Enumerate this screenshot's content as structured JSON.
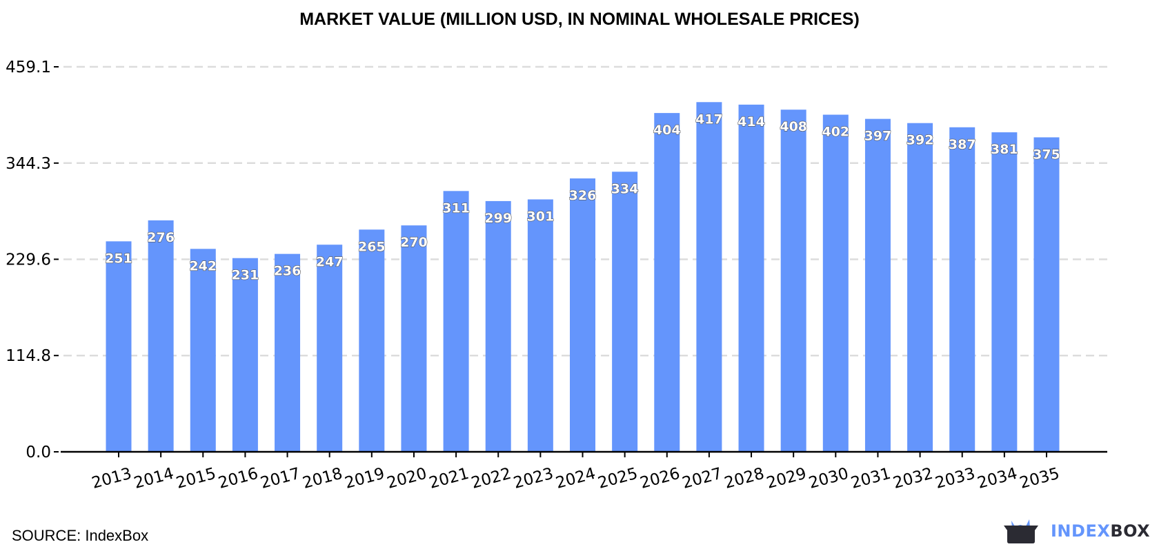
{
  "chart_data": {
    "type": "bar",
    "title": "MARKET VALUE (MILLION USD, IN NOMINAL WHOLESALE PRICES)",
    "categories": [
      "2013",
      "2014",
      "2015",
      "2016",
      "2017",
      "2018",
      "2019",
      "2020",
      "2021",
      "2022",
      "2023",
      "2024",
      "2025",
      "2026",
      "2027",
      "2028",
      "2029",
      "2030",
      "2031",
      "2032",
      "2033",
      "2034",
      "2035"
    ],
    "values": [
      251,
      276,
      242,
      231,
      236,
      247,
      265,
      270,
      311,
      299,
      301,
      326,
      334,
      404,
      417,
      414,
      408,
      402,
      397,
      392,
      387,
      381,
      375
    ],
    "yticks": [
      "0.0",
      "114.8",
      "229.6",
      "344.3",
      "459.1"
    ],
    "ylim": [
      0,
      459.1
    ],
    "grid": true,
    "bar_color": "#6495fc",
    "xlabel": "",
    "ylabel": ""
  },
  "source": "SOURCE: IndexBox",
  "logo": {
    "part1": "INDEX",
    "part2": "BOX",
    "colors": [
      "#6495fc",
      "#2b2b33"
    ]
  }
}
